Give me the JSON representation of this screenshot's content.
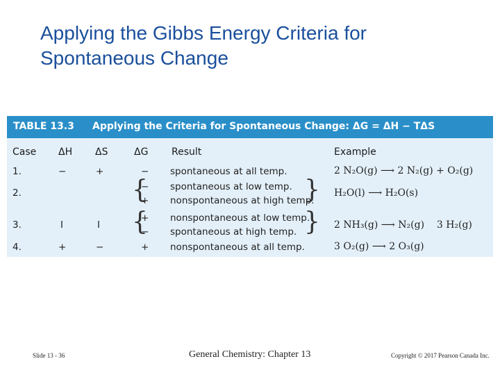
{
  "title": "Applying the Gibbs Energy Criteria for Spontaneous Change",
  "table": {
    "number": "TABLE 13.3",
    "caption": "Applying the Criteria for Spontaneous Change: ΔG = ΔH − TΔS",
    "headers": [
      "Case",
      "ΔH",
      "ΔS",
      "ΔG",
      "Result",
      "Example"
    ],
    "rows": [
      {
        "case": "1.",
        "dH": "−",
        "dS": "+",
        "dG": [
          "−"
        ],
        "result": [
          "spontaneous at all temp."
        ],
        "example": "2 N₂O(g) ⟶ 2 N₂(g) + O₂(g)"
      },
      {
        "case": "2.",
        "dH": "",
        "dS": "",
        "dG": [
          "−",
          "+"
        ],
        "result": [
          "spontaneous at low temp.",
          "nonspontaneous at high temp."
        ],
        "example": "H₂O(l) ⟶ H₂O(s)"
      },
      {
        "case": "3.",
        "dH": "I",
        "dS": "I",
        "dG": [
          "+",
          "−"
        ],
        "result": [
          "nonspontaneous at low temp.",
          "spontaneous at high temp."
        ],
        "example": "2 NH₃(g) ⟶ N₂(g)    3 H₂(g)"
      },
      {
        "case": "4.",
        "dH": "+",
        "dS": "−",
        "dG": [
          "+"
        ],
        "result": [
          "nonspontaneous at all temp."
        ],
        "example": "3 O₂(g) ⟶ 2 O₃(g)"
      }
    ]
  },
  "footer": {
    "slide": "Slide 13 - 36",
    "course": "General Chemistry: Chapter 13",
    "copyright": "Copyright © 2017 Pearson Canada Inc."
  }
}
